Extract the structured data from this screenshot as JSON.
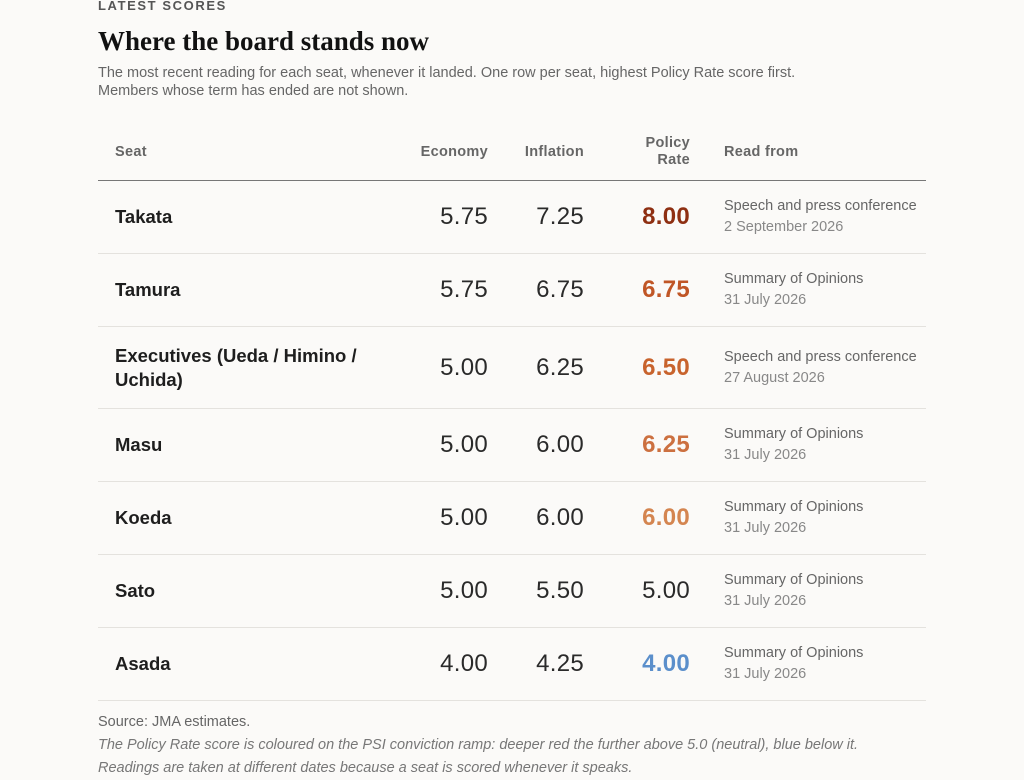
{
  "kicker": "LATEST SCORES",
  "title": "Where the board stands now",
  "subtitle_line1": "The most recent reading for each seat, whenever it landed. One row per seat, highest Policy Rate score first.",
  "subtitle_line2": "Members whose term has ended are not shown.",
  "columns": {
    "seat": "Seat",
    "economy": "Economy",
    "inflation": "Inflation",
    "policy_rate_line1": "Policy",
    "policy_rate_line2": "Rate",
    "read_from": "Read from"
  },
  "rows": [
    {
      "seat": "Takata",
      "economy": "5.75",
      "inflation": "7.25",
      "policy_rate": "8.00",
      "policy_rate_color": "#8e2f12",
      "read_from": "Speech and press conference",
      "date": "2 September 2026"
    },
    {
      "seat": "Tamura",
      "economy": "5.75",
      "inflation": "6.75",
      "policy_rate": "6.75",
      "policy_rate_color": "#c05626",
      "read_from": "Summary of Opinions",
      "date": "31 July 2026"
    },
    {
      "seat": "Executives (Ueda / Himino / Uchida)",
      "economy": "5.00",
      "inflation": "6.25",
      "policy_rate": "6.50",
      "policy_rate_color": "#c8632d",
      "read_from": "Speech and press conference",
      "date": "27 August 2026"
    },
    {
      "seat": "Masu",
      "economy": "5.00",
      "inflation": "6.00",
      "policy_rate": "6.25",
      "policy_rate_color": "#cc7040",
      "read_from": "Summary of Opinions",
      "date": "31 July 2026"
    },
    {
      "seat": "Koeda",
      "economy": "5.00",
      "inflation": "6.00",
      "policy_rate": "6.00",
      "policy_rate_color": "#d48550",
      "read_from": "Summary of Opinions",
      "date": "31 July 2026"
    },
    {
      "seat": "Sato",
      "economy": "5.00",
      "inflation": "5.50",
      "policy_rate": "5.00",
      "policy_rate_color": "#2a2a2a",
      "read_from": "Summary of Opinions",
      "date": "31 July 2026"
    },
    {
      "seat": "Asada",
      "economy": "4.00",
      "inflation": "4.25",
      "policy_rate": "4.00",
      "policy_rate_color": "#5b8fcb",
      "read_from": "Summary of Opinions",
      "date": "31 July 2026"
    }
  ],
  "source": "Source: JMA estimates.",
  "note_line1": "The Policy Rate score is coloured on the PSI conviction ramp: deeper red the further above 5.0 (neutral), blue below it.",
  "note_line2": "Readings are taken at different dates because a seat is scored whenever it speaks."
}
